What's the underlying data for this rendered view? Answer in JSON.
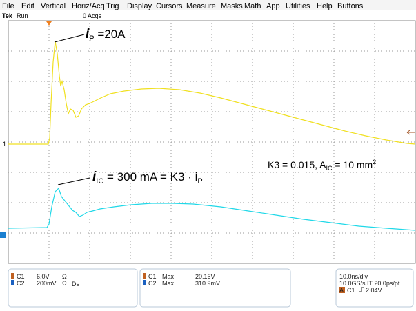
{
  "menu": [
    "File",
    "Edit",
    "Vertical",
    "Horiz/Acq",
    "Trig",
    "Display",
    "Cursors",
    "Measure",
    "Masks",
    "Math",
    "App",
    "Utilities",
    "Help",
    "Buttons"
  ],
  "status": {
    "brand": "Tek",
    "state": "Run",
    "acqs": "0 Acqs"
  },
  "markers": {
    "ch1": "1"
  },
  "annotations": {
    "ip": {
      "i": "i",
      "sub": "P",
      "text": " =20A"
    },
    "iic": {
      "i": "i",
      "sub": "IC",
      "text": " = 300 mA = K3 · i",
      "sub2": "P"
    },
    "k3": {
      "text": "K3 = 0.015,    A",
      "sub": "IC",
      "text2": " = 10 mm",
      "sup": "2"
    }
  },
  "readouts": {
    "vertical": [
      {
        "ch": "C1",
        "scale": "6.0V",
        "unit": "Ω"
      },
      {
        "ch": "C2",
        "scale": "200mV",
        "unit": "Ω",
        "extra": "Ds"
      }
    ],
    "measure": [
      {
        "ch": "C1",
        "label": "Max",
        "value": "20.16V"
      },
      {
        "ch": "C2",
        "label": "Max",
        "value": "310.9mV"
      }
    ],
    "horizontal": {
      "scale": "10.0ns/div",
      "rate": "10.0GS/s IT 20.0ps/pt",
      "trig_mode": "A",
      "trig_ch": "C1",
      "trig_level": "2.04V"
    }
  }
}
